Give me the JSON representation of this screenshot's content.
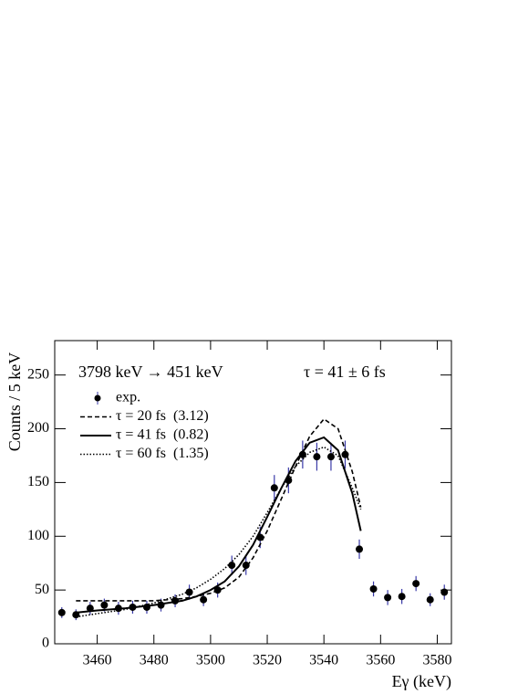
{
  "chart_data": {
    "type": "scatter",
    "x_label": "Eγ (keV)",
    "y_label": "Counts / 5 keV",
    "annotations": [
      "3798 keV → 451 keV",
      "τ = 41 ± 6 fs"
    ],
    "xlim": [
      3445,
      3585
    ],
    "ylim": [
      0,
      282
    ],
    "xticks": [
      3460,
      3480,
      3500,
      3520,
      3540,
      3560,
      3580
    ],
    "yticks": [
      0,
      50,
      100,
      150,
      200,
      250
    ],
    "series": [
      {
        "name": "exp.",
        "color": "#000000",
        "error_color": "#3a3aa8",
        "style": "points",
        "x": [
          3447.5,
          3452.5,
          3457.5,
          3462.5,
          3467.5,
          3472.5,
          3477.5,
          3482.5,
          3487.5,
          3492.5,
          3497.5,
          3502.5,
          3507.5,
          3512.5,
          3517.5,
          3522.5,
          3527.5,
          3532.5,
          3537.5,
          3542.5,
          3547.5,
          3552.5,
          3557.5,
          3562.5,
          3567.5,
          3572.5,
          3577.5,
          3582.5
        ],
        "values": [
          29,
          27,
          33,
          36,
          33,
          34,
          34,
          36,
          40,
          48,
          41,
          50,
          73,
          73,
          99,
          145,
          152,
          176,
          174,
          174,
          176,
          88,
          51,
          43,
          44,
          56,
          41,
          48
        ],
        "errors": [
          5,
          5,
          6,
          6,
          6,
          6,
          6,
          6,
          6,
          7,
          6,
          7,
          9,
          9,
          10,
          12,
          12,
          13,
          13,
          13,
          13,
          9,
          7,
          7,
          7,
          7,
          6,
          7
        ]
      },
      {
        "name": "τ = 20 fs  (3.12)",
        "color": "#000000",
        "style": "dashed",
        "x": [
          3452.5,
          3460,
          3470,
          3480,
          3490,
          3495,
          3500,
          3505,
          3510,
          3515,
          3520,
          3525,
          3530,
          3535,
          3540,
          3545,
          3550,
          3553
        ],
        "values": [
          40,
          40,
          40,
          40,
          42,
          44,
          47,
          52,
          62,
          80,
          105,
          135,
          165,
          193,
          209,
          200,
          160,
          127
        ]
      },
      {
        "name": "τ = 41 fs  (0.82)",
        "color": "#000000",
        "style": "solid",
        "x": [
          3452.5,
          3460,
          3470,
          3480,
          3490,
          3495,
          3500,
          3505,
          3510,
          3515,
          3520,
          3525,
          3530,
          3535,
          3540,
          3545,
          3550,
          3553
        ],
        "values": [
          29,
          31,
          33,
          36,
          40,
          44,
          50,
          58,
          72,
          92,
          118,
          145,
          170,
          187,
          192,
          180,
          140,
          105
        ]
      },
      {
        "name": "τ = 60 fs  (1.35)",
        "color": "#000000",
        "style": "dotted",
        "x": [
          3452.5,
          3460,
          3470,
          3480,
          3490,
          3495,
          3500,
          3505,
          3510,
          3515,
          3520,
          3525,
          3530,
          3535,
          3540,
          3545,
          3550,
          3553
        ],
        "values": [
          25,
          28,
          32,
          38,
          46,
          52,
          60,
          70,
          83,
          100,
          122,
          145,
          165,
          178,
          183,
          175,
          145,
          125
        ]
      }
    ]
  }
}
